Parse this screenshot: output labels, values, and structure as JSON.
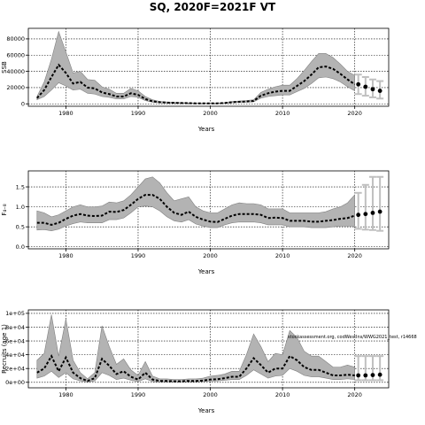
{
  "title": "SQ, 2020F=2021F VT",
  "note": "stockassessment.org, codWestIns/WWG2021_test, r14668",
  "chart_data": [
    {
      "type": "line",
      "ylabel": "SSB",
      "xlabel": "Years",
      "xlim": [
        1974.8,
        2024.7
      ],
      "ylim": [
        -3000,
        93000
      ],
      "xticks": [
        1980,
        1990,
        2000,
        2010,
        2020
      ],
      "yticks": [
        0,
        20000,
        40000,
        60000,
        80000
      ],
      "ytick_labels": [
        "0",
        "20000",
        "40000",
        "60000",
        "80000"
      ],
      "grid": true,
      "years": [
        1976,
        1977,
        1978,
        1979,
        1980,
        1981,
        1982,
        1983,
        1984,
        1985,
        1986,
        1987,
        1988,
        1989,
        1990,
        1991,
        1992,
        1993,
        1994,
        1995,
        1996,
        1997,
        1998,
        1999,
        2000,
        2001,
        2002,
        2003,
        2004,
        2005,
        2006,
        2007,
        2008,
        2009,
        2010,
        2011,
        2012,
        2013,
        2014,
        2015,
        2016,
        2017,
        2018,
        2019,
        2020
      ],
      "estimate": [
        7000,
        17000,
        33000,
        48000,
        38000,
        25000,
        27000,
        20000,
        19000,
        14000,
        12000,
        9000,
        9000,
        13000,
        11000,
        6000,
        3000,
        2000,
        1500,
        1200,
        1000,
        800,
        600,
        500,
        500,
        600,
        1000,
        2000,
        2500,
        2800,
        3500,
        10000,
        13000,
        15000,
        16000,
        16000,
        22000,
        28000,
        36000,
        45000,
        46000,
        43000,
        37000,
        30000,
        24000
      ],
      "lower": [
        5000,
        9000,
        17000,
        26000,
        22000,
        17000,
        18000,
        13000,
        12000,
        9000,
        8000,
        6000,
        6000,
        9000,
        8000,
        4000,
        2000,
        1300,
        1000,
        800,
        700,
        500,
        400,
        300,
        300,
        400,
        700,
        1400,
        1800,
        2000,
        2500,
        7000,
        9000,
        10000,
        11000,
        11000,
        15000,
        19000,
        25000,
        32000,
        33000,
        31000,
        27000,
        21000,
        16000
      ],
      "upper": [
        9000,
        27000,
        55000,
        89000,
        64000,
        38000,
        40000,
        30000,
        29000,
        21000,
        18000,
        13000,
        13000,
        19000,
        16000,
        9000,
        5000,
        3000,
        2200,
        1800,
        1500,
        1200,
        900,
        800,
        800,
        900,
        1500,
        2800,
        3500,
        4000,
        5000,
        14000,
        18000,
        21000,
        23000,
        23000,
        31000,
        41000,
        52000,
        62000,
        62000,
        57000,
        49000,
        40000,
        35000
      ],
      "forecast": {
        "years": [
          2020,
          2021,
          2022,
          2023
        ],
        "values": [
          24000,
          21000,
          18000,
          16000
        ],
        "lower": [
          12000,
          10000,
          8000,
          6500
        ],
        "upper": [
          36000,
          33000,
          30000,
          28000
        ]
      }
    },
    {
      "type": "line",
      "ylabel": "F₄₋₈",
      "xlabel": "Years",
      "xlim": [
        1974.8,
        2024.7
      ],
      "ylim": [
        -0.05,
        1.9
      ],
      "xticks": [
        1980,
        1990,
        2000,
        2010,
        2020
      ],
      "yticks": [
        0,
        0.5,
        1.0,
        1.5
      ],
      "ytick_labels": [
        "0.0",
        "0.5",
        "1.0",
        "1.5"
      ],
      "grid": true,
      "years": [
        1976,
        1977,
        1978,
        1979,
        1980,
        1981,
        1982,
        1983,
        1984,
        1985,
        1986,
        1987,
        1988,
        1989,
        1990,
        1991,
        1992,
        1993,
        1994,
        1995,
        1996,
        1997,
        1998,
        1999,
        2000,
        2001,
        2002,
        2003,
        2004,
        2005,
        2006,
        2007,
        2008,
        2009,
        2010,
        2011,
        2012,
        2013,
        2014,
        2015,
        2016,
        2017,
        2018,
        2019,
        2020
      ],
      "estimate": [
        0.6,
        0.6,
        0.55,
        0.6,
        0.7,
        0.78,
        0.82,
        0.78,
        0.77,
        0.78,
        0.88,
        0.87,
        0.92,
        1.05,
        1.2,
        1.3,
        1.3,
        1.2,
        1.0,
        0.85,
        0.8,
        0.88,
        0.75,
        0.68,
        0.63,
        0.62,
        0.7,
        0.78,
        0.82,
        0.82,
        0.82,
        0.8,
        0.72,
        0.73,
        0.72,
        0.65,
        0.65,
        0.65,
        0.63,
        0.63,
        0.65,
        0.67,
        0.7,
        0.72,
        0.78
      ],
      "lower": [
        0.42,
        0.43,
        0.4,
        0.44,
        0.52,
        0.58,
        0.62,
        0.6,
        0.6,
        0.6,
        0.68,
        0.68,
        0.72,
        0.85,
        1.0,
        1.02,
        1.0,
        0.9,
        0.75,
        0.65,
        0.62,
        0.68,
        0.57,
        0.52,
        0.48,
        0.48,
        0.55,
        0.6,
        0.62,
        0.62,
        0.62,
        0.6,
        0.55,
        0.55,
        0.55,
        0.5,
        0.5,
        0.5,
        0.48,
        0.48,
        0.48,
        0.5,
        0.52,
        0.52,
        0.52
      ],
      "upper": [
        0.9,
        0.85,
        0.75,
        0.8,
        0.9,
        1.0,
        1.05,
        1.0,
        1.0,
        1.02,
        1.12,
        1.1,
        1.15,
        1.3,
        1.5,
        1.7,
        1.75,
        1.6,
        1.35,
        1.15,
        1.2,
        1.25,
        1.0,
        0.9,
        0.85,
        0.85,
        0.95,
        1.05,
        1.1,
        1.08,
        1.08,
        1.05,
        0.95,
        0.95,
        0.95,
        0.85,
        0.85,
        0.85,
        0.85,
        0.85,
        0.88,
        0.95,
        1.0,
        1.1,
        1.3
      ],
      "forecast": {
        "years": [
          2020,
          2021,
          2022,
          2023
        ],
        "values": [
          0.8,
          0.82,
          0.85,
          0.88
        ],
        "lower": [
          0.45,
          0.43,
          0.42,
          0.4
        ],
        "upper": [
          1.35,
          1.55,
          1.75,
          1.75
        ]
      }
    },
    {
      "type": "line",
      "ylabel": "Recruits (age 1)",
      "xlabel": "Years",
      "xlim": [
        1974.8,
        2024.7
      ],
      "ylim": [
        -8000,
        105000
      ],
      "xticks": [
        1980,
        1990,
        2000,
        2010,
        2020
      ],
      "yticks": [
        0,
        20000,
        40000,
        60000,
        80000,
        100000
      ],
      "ytick_labels": [
        "0e+00",
        "2e+04",
        "4e+04",
        "6e+04",
        "8e+04",
        "1e+05"
      ],
      "grid": true,
      "years": [
        1976,
        1977,
        1978,
        1979,
        1980,
        1981,
        1982,
        1983,
        1984,
        1985,
        1986,
        1987,
        1988,
        1989,
        1990,
        1991,
        1992,
        1993,
        1994,
        1995,
        1996,
        1997,
        1998,
        1999,
        2000,
        2001,
        2002,
        2003,
        2004,
        2005,
        2006,
        2007,
        2008,
        2009,
        2010,
        2011,
        2012,
        2013,
        2014,
        2015,
        2016,
        2017,
        2018,
        2019,
        2020
      ],
      "estimate": [
        14000,
        20000,
        38000,
        16000,
        36000,
        14000,
        6000,
        2000,
        6000,
        34000,
        24000,
        12000,
        16000,
        8000,
        4000,
        14000,
        4000,
        2000,
        2000,
        1500,
        1500,
        2000,
        2000,
        2500,
        4000,
        4500,
        6000,
        8000,
        8000,
        20000,
        35000,
        25000,
        14000,
        20000,
        20000,
        38000,
        32000,
        22000,
        18000,
        18000,
        14000,
        10000,
        10000,
        11000,
        10000
      ],
      "lower": [
        6000,
        9000,
        16000,
        7000,
        14000,
        5000,
        2000,
        500,
        2000,
        14000,
        10000,
        4000,
        6000,
        3000,
        1000,
        5000,
        1000,
        500,
        500,
        500,
        500,
        800,
        800,
        1000,
        1800,
        2000,
        3000,
        4000,
        4000,
        10000,
        18000,
        12000,
        6000,
        9000,
        10000,
        20000,
        16000,
        10000,
        8000,
        8000,
        6000,
        4000,
        4000,
        5000,
        4000
      ],
      "upper": [
        32000,
        42000,
        98000,
        38000,
        92000,
        32000,
        14000,
        5000,
        14000,
        82000,
        52000,
        26000,
        34000,
        18000,
        10000,
        30000,
        9000,
        5000,
        5000,
        4000,
        4000,
        5000,
        5000,
        6000,
        9000,
        10000,
        12000,
        16000,
        16000,
        40000,
        70000,
        52000,
        30000,
        42000,
        40000,
        75000,
        65000,
        45000,
        38000,
        38000,
        30000,
        22000,
        22000,
        25000,
        22000
      ],
      "forecast": {
        "years": [
          2020,
          2021,
          2022,
          2023
        ],
        "values": [
          10000,
          10000,
          10500,
          11000
        ],
        "lower": [
          3000,
          3000,
          3000,
          3000
        ],
        "upper": [
          38000,
          38000,
          38000,
          38000
        ]
      }
    }
  ]
}
